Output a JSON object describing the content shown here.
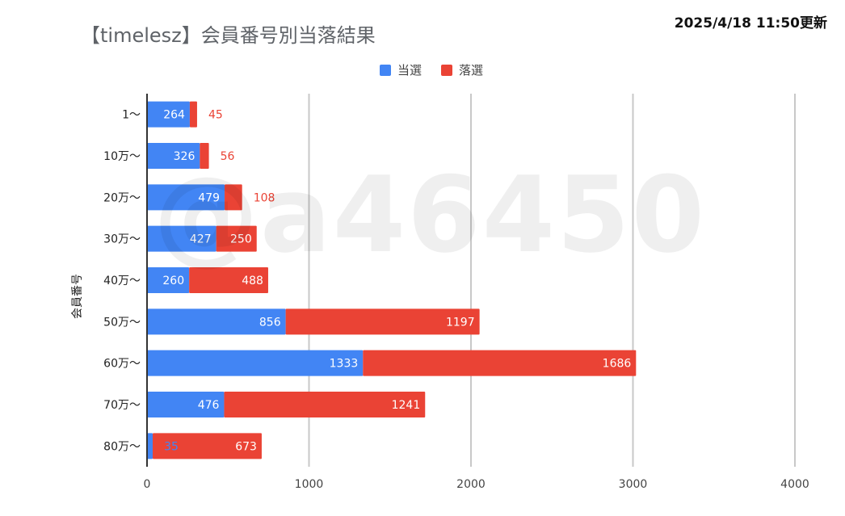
{
  "header": {
    "title": "【timelesz】会員番号別当落結果",
    "updated": "2025/4/18 11:50更新"
  },
  "watermark": "@a46450",
  "colors": {
    "win": "#4285f4",
    "lose": "#ea4335"
  },
  "chart_data": {
    "type": "bar",
    "orientation": "horizontal",
    "stacked": true,
    "categories": [
      "1〜",
      "10万〜",
      "20万〜",
      "30万〜",
      "40万〜",
      "50万〜",
      "60万〜",
      "70万〜",
      "80万〜"
    ],
    "series": [
      {
        "name": "当選",
        "values": [
          264,
          326,
          479,
          427,
          260,
          856,
          1333,
          476,
          35
        ]
      },
      {
        "name": "落選",
        "values": [
          45,
          56,
          108,
          250,
          488,
          1197,
          1686,
          1241,
          673
        ]
      }
    ],
    "ylabel": "会員番号",
    "xlabel": "",
    "xlim": [
      0,
      4000
    ],
    "xticks": [
      0,
      1000,
      2000,
      3000,
      4000
    ],
    "grid": true,
    "legend": "top-center"
  }
}
